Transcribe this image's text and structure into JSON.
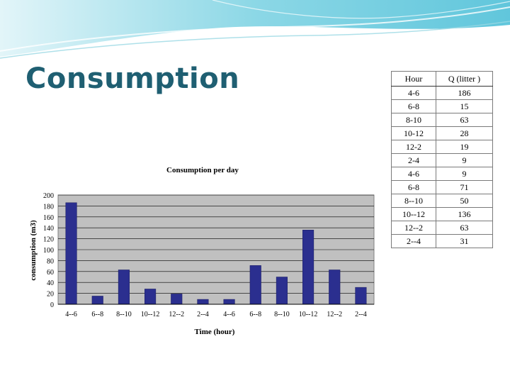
{
  "slide": {
    "title": "Consumption"
  },
  "colors": {
    "title": "#1f5f72",
    "bar": "#2b2f8f",
    "plot_bg": "#c0c0c0",
    "header_wave": "#6fd0e0"
  },
  "table": {
    "headers": [
      "Hour",
      "Q (litter )"
    ],
    "rows": [
      [
        "4-6",
        "186"
      ],
      [
        "6-8",
        "15"
      ],
      [
        "8-10",
        "63"
      ],
      [
        "10-12",
        "28"
      ],
      [
        "12-2",
        "19"
      ],
      [
        "2-4",
        "9"
      ],
      [
        "4-6",
        "9"
      ],
      [
        "6-8",
        "71"
      ],
      [
        "8--10",
        "50"
      ],
      [
        "10--12",
        "136"
      ],
      [
        "12--2",
        "63"
      ],
      [
        "2--4",
        "31"
      ]
    ]
  },
  "chart_data": {
    "type": "bar",
    "title": "Consumption per day",
    "xlabel": "Time (hour)",
    "ylabel": "consumption (m3)",
    "categories": [
      "4--6",
      "6--8",
      "8--10",
      "10--12",
      "12--2",
      "2--4",
      "4--6",
      "6--8",
      "8--10",
      "10--12",
      "12--2",
      "2--4"
    ],
    "values": [
      186,
      15,
      63,
      28,
      19,
      9,
      9,
      71,
      50,
      136,
      63,
      31
    ],
    "ylim": [
      0,
      200
    ],
    "yticks": [
      0,
      20,
      40,
      60,
      80,
      100,
      120,
      140,
      160,
      180,
      200
    ],
    "grid": true,
    "legend": "none"
  }
}
